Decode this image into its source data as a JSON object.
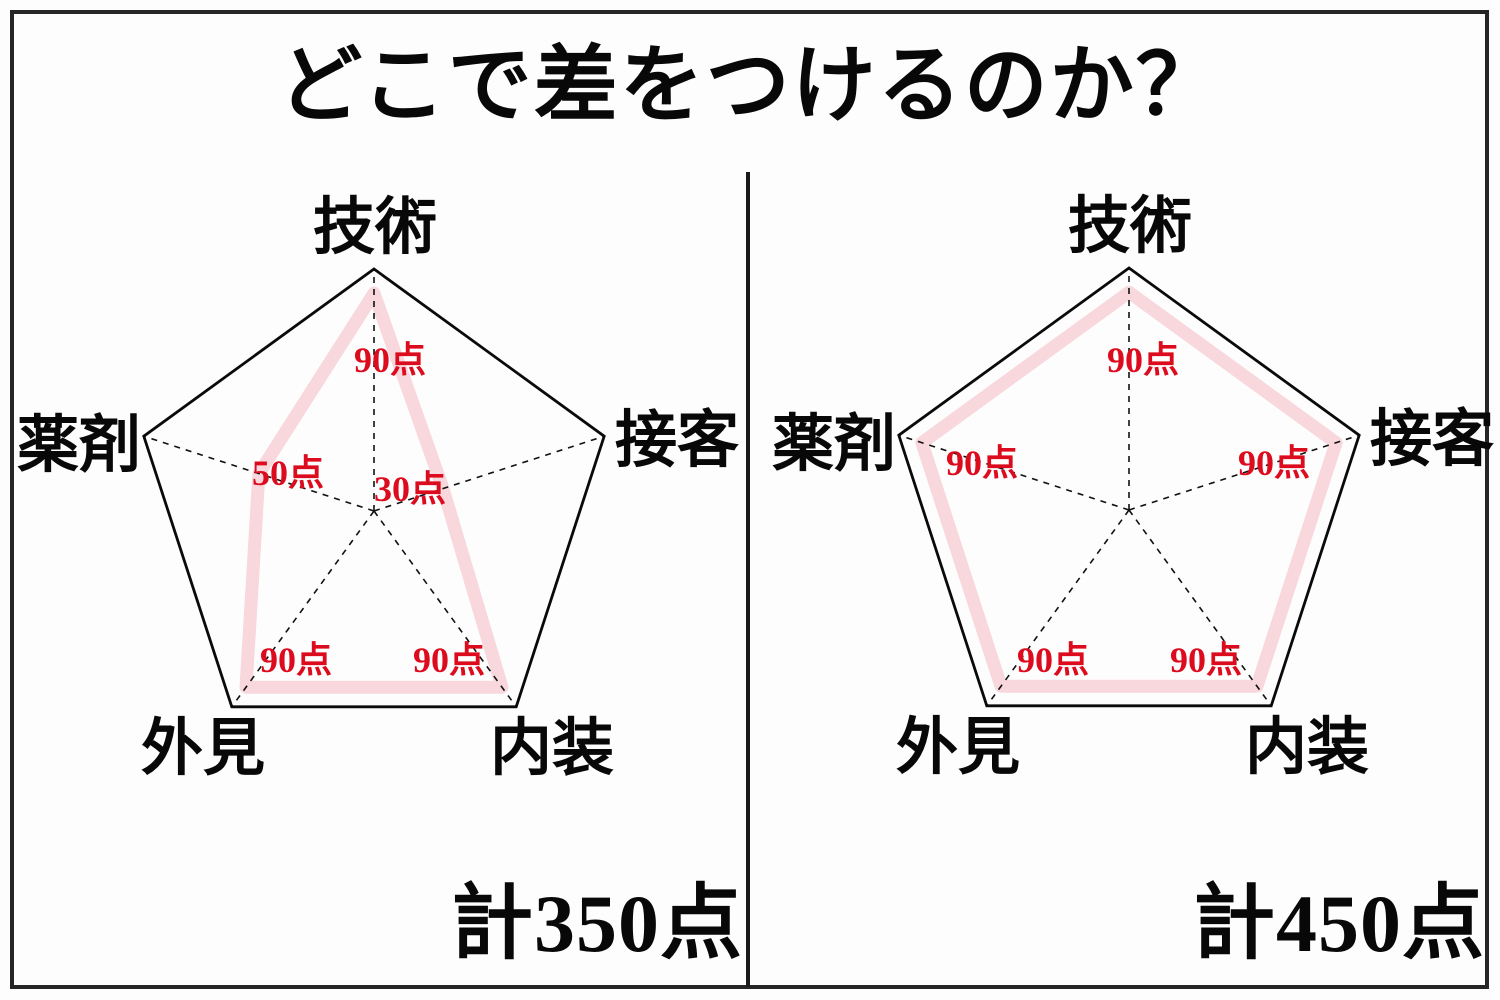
{
  "title": "どこで差をつけるのか？",
  "colors": {
    "data_line": "#f8d7dd",
    "value_text": "#dc0c1e",
    "axis_text": "#080808",
    "grid_line": "#111111",
    "frame": "#262626",
    "background": "#fdfdfd"
  },
  "chart_data": [
    {
      "type": "radar",
      "side": "left",
      "axes": [
        "技術",
        "接客",
        "内装",
        "外見",
        "薬剤"
      ],
      "values": [
        90,
        30,
        90,
        90,
        50
      ],
      "value_labels": [
        "90点",
        "30点",
        "90点",
        "90点",
        "50点"
      ],
      "max": 100,
      "total": 350,
      "total_label": "計350点",
      "grid": "pentagon-outline-with-dashed-spokes",
      "legend": "none"
    },
    {
      "type": "radar",
      "side": "right",
      "axes": [
        "技術",
        "接客",
        "内装",
        "外見",
        "薬剤"
      ],
      "values": [
        90,
        90,
        90,
        90,
        90
      ],
      "value_labels": [
        "90点",
        "90点",
        "90点",
        "90点",
        "90点"
      ],
      "max": 100,
      "total": 450,
      "total_label": "計450点",
      "grid": "pentagon-outline-with-dashed-spokes",
      "legend": "none"
    }
  ]
}
